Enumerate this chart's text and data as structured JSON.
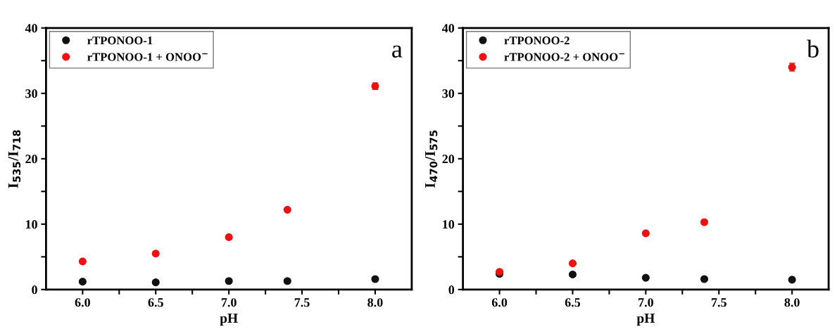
{
  "chart_data": [
    {
      "type": "scatter",
      "xlabel": "pH",
      "ylabel": "I$_{535}$/I$_{718}$",
      "annotations": [
        "a"
      ],
      "x": [
        6.0,
        6.5,
        7.0,
        7.4,
        8.0
      ],
      "series": [
        {
          "name": "rTPONOO-1",
          "color": "#111111",
          "values": [
            1.2,
            1.1,
            1.3,
            1.3,
            1.6
          ]
        },
        {
          "name": "rTPONOO-1 + ONOO$^{−}$",
          "color": "#ee1111",
          "values": [
            4.3,
            5.5,
            8.0,
            12.2,
            31.1
          ],
          "errors": [
            null,
            null,
            null,
            null,
            0.5
          ]
        }
      ],
      "xlim": [
        5.75,
        8.25
      ],
      "xticks": [
        {
          "value": 6,
          "label": "6.0"
        },
        {
          "value": 6.25,
          "label": null
        },
        {
          "value": 6.5,
          "label": "6.5"
        },
        {
          "value": 6.75,
          "label": null
        },
        {
          "value": 7,
          "label": "7.0"
        },
        {
          "value": 7.25,
          "label": null
        },
        {
          "value": 7.5,
          "label": "7.5"
        },
        {
          "value": 7.75,
          "label": null
        },
        {
          "value": 8,
          "label": "8.0"
        }
      ],
      "ylim": [
        0,
        40
      ],
      "yticks": [
        0,
        {
          "value": 5,
          "label": null
        },
        10,
        {
          "value": 15,
          "label": null
        },
        20,
        {
          "value": 25,
          "label": null
        },
        30,
        {
          "value": 35,
          "label": null
        },
        40
      ],
      "grid": false,
      "legend": "top left",
      "marker": "circle"
    },
    {
      "type": "scatter",
      "xlabel": "pH",
      "ylabel": "I$_{470}$/I$_{575}$",
      "annotations": [
        "b"
      ],
      "x": [
        6.0,
        6.5,
        7.0,
        7.4,
        8.0
      ],
      "series": [
        {
          "name": "rTPONOO-2",
          "color": "#111111",
          "values": [
            2.4,
            2.3,
            1.8,
            1.6,
            1.5
          ]
        },
        {
          "name": "rTPONOO-2 + ONOO$^{−}$",
          "color": "#ee1111",
          "values": [
            2.7,
            4.0,
            8.6,
            10.3,
            34.0
          ],
          "errors": [
            null,
            null,
            null,
            null,
            0.6
          ]
        }
      ],
      "xlim": [
        5.75,
        8.25
      ],
      "xticks": [
        {
          "value": 6,
          "label": "6.0"
        },
        {
          "value": 6.25,
          "label": null
        },
        {
          "value": 6.5,
          "label": "6.5"
        },
        {
          "value": 6.75,
          "label": null
        },
        {
          "value": 7,
          "label": "7.0"
        },
        {
          "value": 7.25,
          "label": null
        },
        {
          "value": 7.5,
          "label": "7.5"
        },
        {
          "value": 7.75,
          "label": null
        },
        {
          "value": 8,
          "label": "8.0"
        }
      ],
      "ylim": [
        0,
        40
      ],
      "yticks": [
        0,
        {
          "value": 5,
          "label": null
        },
        10,
        {
          "value": 15,
          "label": null
        },
        20,
        {
          "value": 25,
          "label": null
        },
        30,
        {
          "value": 35,
          "label": null
        },
        40
      ],
      "grid": false,
      "legend": "top left",
      "marker": "circle"
    }
  ]
}
